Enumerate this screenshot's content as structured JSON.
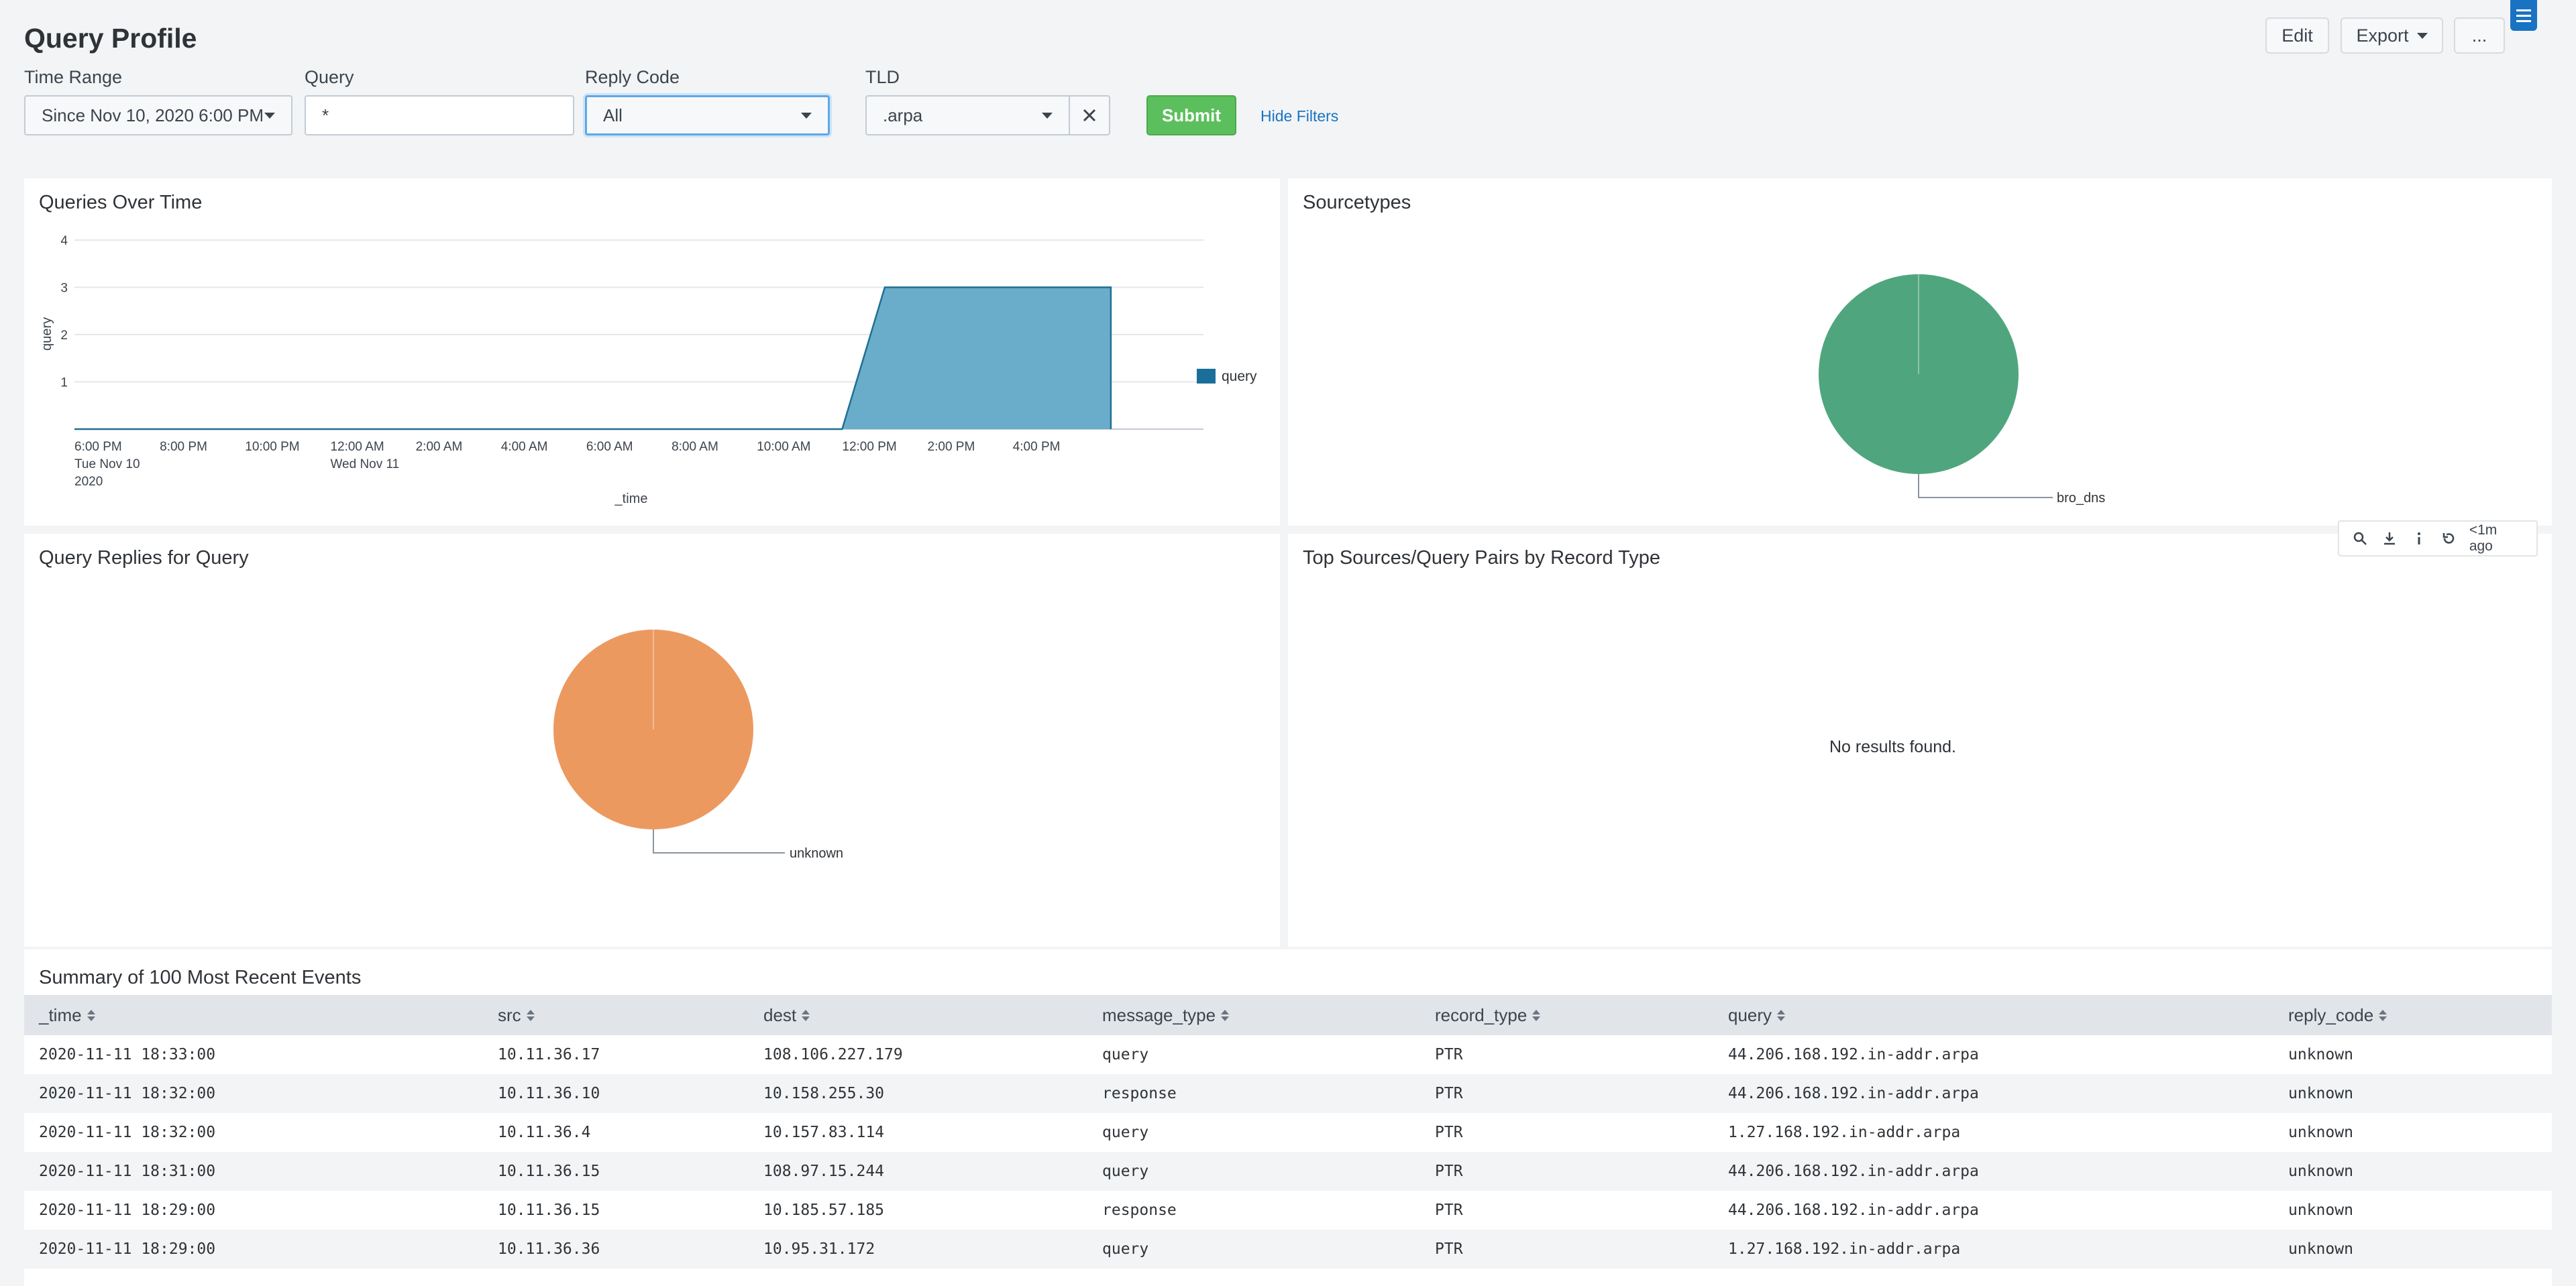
{
  "header": {
    "title": "Query Profile",
    "edit_label": "Edit",
    "export_label": "Export",
    "more_label": "..."
  },
  "filters": {
    "time_range": {
      "label": "Time Range",
      "value": "Since Nov 10, 2020 6:00 PM"
    },
    "query": {
      "label": "Query",
      "value": "*"
    },
    "reply_code": {
      "label": "Reply Code",
      "value": "All"
    },
    "tld": {
      "label": "TLD",
      "value": ".arpa"
    },
    "submit_label": "Submit",
    "hide_filters_label": "Hide Filters"
  },
  "panels": {
    "queries_over_time": {
      "title": "Queries Over Time"
    },
    "sourcetypes": {
      "title": "Sourcetypes"
    },
    "query_replies": {
      "title": "Query Replies for Query"
    },
    "top_sources": {
      "title": "Top Sources/Query Pairs by Record Type",
      "empty_text": "No results found."
    },
    "last_updated": "<1m ago"
  },
  "colors": {
    "area_fill": "#6aadca",
    "area_stroke": "#1f6f93",
    "legend_swatch": "#1a6f9a",
    "pie_green": "#4fa67e",
    "pie_orange": "#ec9960",
    "accent": "#1a73c2",
    "submit": "#5cbf5d"
  },
  "chart_data": [
    {
      "type": "area",
      "title": "Queries Over Time",
      "xlabel": "_time",
      "ylabel": "query",
      "ylim": [
        0,
        4
      ],
      "yticks": [
        "1",
        "2",
        "3",
        "4"
      ],
      "xticks": [
        {
          "line1": "6:00 PM",
          "line2": "Tue Nov 10",
          "line3": "2020"
        },
        {
          "line1": "8:00 PM"
        },
        {
          "line1": "10:00 PM"
        },
        {
          "line1": "12:00 AM",
          "line2": "Wed Nov 11"
        },
        {
          "line1": "2:00 AM"
        },
        {
          "line1": "4:00 AM"
        },
        {
          "line1": "6:00 AM"
        },
        {
          "line1": "8:00 AM"
        },
        {
          "line1": "10:00 AM"
        },
        {
          "line1": "12:00 PM"
        },
        {
          "line1": "2:00 PM"
        },
        {
          "line1": "4:00 PM"
        }
      ],
      "grid": true,
      "legend_position": "right",
      "series": [
        {
          "name": "query",
          "x_hours": [
            0,
            18,
            19,
            24.3
          ],
          "values": [
            0,
            0,
            3,
            3
          ]
        }
      ]
    },
    {
      "type": "pie",
      "title": "Sourcetypes",
      "categories": [
        "bro_dns"
      ],
      "values": [
        100
      ]
    },
    {
      "type": "pie",
      "title": "Query Replies for Query",
      "categories": [
        "unknown"
      ],
      "values": [
        100
      ]
    }
  ],
  "table": {
    "title": "Summary of 100 Most Recent Events",
    "columns": [
      "_time",
      "src",
      "dest",
      "message_type",
      "record_type",
      "query",
      "reply_code"
    ],
    "rows": [
      [
        "2020-11-11 18:33:00",
        "10.11.36.17",
        "108.106.227.179",
        "query",
        "PTR",
        "44.206.168.192.in-addr.arpa",
        "unknown"
      ],
      [
        "2020-11-11 18:32:00",
        "10.11.36.10",
        "10.158.255.30",
        "response",
        "PTR",
        "44.206.168.192.in-addr.arpa",
        "unknown"
      ],
      [
        "2020-11-11 18:32:00",
        "10.11.36.4",
        "10.157.83.114",
        "query",
        "PTR",
        "1.27.168.192.in-addr.arpa",
        "unknown"
      ],
      [
        "2020-11-11 18:31:00",
        "10.11.36.15",
        "108.97.15.244",
        "query",
        "PTR",
        "44.206.168.192.in-addr.arpa",
        "unknown"
      ],
      [
        "2020-11-11 18:29:00",
        "10.11.36.15",
        "10.185.57.185",
        "response",
        "PTR",
        "44.206.168.192.in-addr.arpa",
        "unknown"
      ],
      [
        "2020-11-11 18:29:00",
        "10.11.36.36",
        "10.95.31.172",
        "query",
        "PTR",
        "1.27.168.192.in-addr.arpa",
        "unknown"
      ]
    ]
  }
}
